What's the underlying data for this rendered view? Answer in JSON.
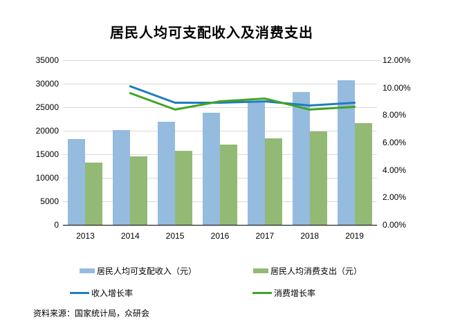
{
  "title": "居民人均可支配收入及消费支出",
  "source_note": "资料来源：国家统计局，众研会",
  "chart_data": {
    "type": "bar+line",
    "title": "居民人均可支配收入及消费支出",
    "categories": [
      "2013",
      "2014",
      "2015",
      "2016",
      "2017",
      "2018",
      "2019"
    ],
    "bar_series": [
      {
        "name": "居民人均可支配收入（元）",
        "axis": "left",
        "color": "#95BBDE",
        "values": [
          18311,
          20167,
          21966,
          23821,
          25974,
          28228,
          30733
        ]
      },
      {
        "name": "居民人均消费支出（元）",
        "axis": "left",
        "color": "#92BA74",
        "values": [
          13220,
          14491,
          15712,
          17111,
          18322,
          19853,
          21559
        ]
      }
    ],
    "line_series": [
      {
        "name": "收入增长率",
        "axis": "right",
        "color": "#1E7CC1",
        "values_percent": [
          null,
          10.1,
          8.9,
          8.9,
          9.0,
          8.7,
          8.9
        ]
      },
      {
        "name": "消费增长率",
        "axis": "right",
        "color": "#41A421",
        "values_percent": [
          null,
          9.6,
          8.4,
          9.0,
          9.2,
          8.4,
          8.6
        ]
      }
    ],
    "left_axis": {
      "min": 0,
      "max": 35000,
      "step": 5000,
      "ticks_top_to_bottom": [
        "35000",
        "30000",
        "25000",
        "20000",
        "15000",
        "10000",
        "5000",
        "0"
      ]
    },
    "right_axis": {
      "min": 0,
      "max": 12,
      "step": 2,
      "ticks_top_to_bottom": [
        "12.00%",
        "10.00%",
        "8.00%",
        "6.00%",
        "4.00%",
        "2.00%",
        "0.00%"
      ]
    },
    "legend": [
      {
        "label": "居民人均可支配收入（元）",
        "type": "bar",
        "color": "#95BBDE"
      },
      {
        "label": "居民人均消费支出（元）",
        "type": "bar",
        "color": "#92BA74"
      },
      {
        "label": "收入增长率",
        "type": "line",
        "color": "#1E7CC1"
      },
      {
        "label": "消费增长率",
        "type": "line",
        "color": "#41A421"
      }
    ],
    "layout_hints": {
      "grid": "horizontal, every 5000 on left axis",
      "gridline_color": "#D9D9D9",
      "axis_line_color": "#000000",
      "legend_position": "bottom"
    }
  }
}
